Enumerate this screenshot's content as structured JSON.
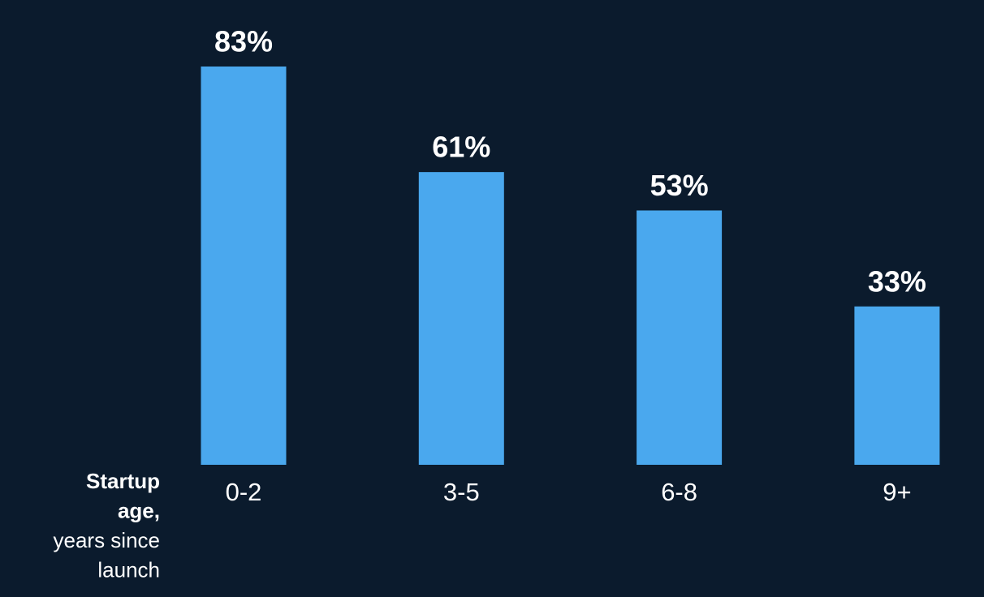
{
  "chart_data": {
    "type": "bar",
    "categories": [
      "0-2",
      "3-5",
      "6-8",
      "9+"
    ],
    "values": [
      83,
      61,
      53,
      33
    ],
    "value_labels": [
      "83%",
      "61%",
      "53%",
      "33%"
    ],
    "color": "#4aa8ee",
    "x_label": [
      {
        "text": "Startup",
        "bold": true
      },
      {
        "text": "age,",
        "bold": true
      },
      {
        "text": "years since",
        "bold": false
      },
      {
        "text": "launch",
        "bold": false
      }
    ]
  }
}
